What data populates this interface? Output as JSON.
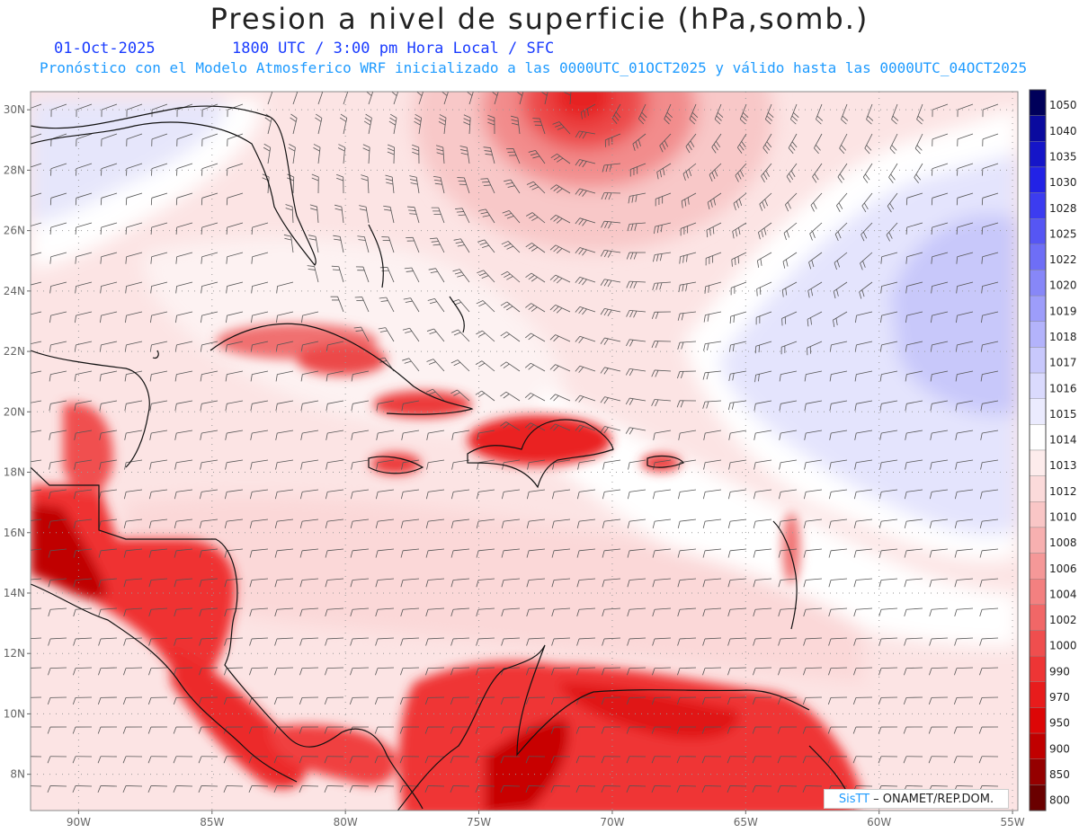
{
  "title": "Presion a nivel de superficie (hPa,somb.)",
  "subtitle": {
    "date": "01-Oct-2025",
    "time": "1800 UTC / 3:00 pm Hora Local / SFC",
    "model": "Pronóstico con el Modelo Atmosferico WRF inicializado a las 0000UTC_01OCT2025 y válido hasta las  0000UTC_04OCT2025"
  },
  "map": {
    "lat_ticks": [
      "30N",
      "28N",
      "26N",
      "24N",
      "22N",
      "20N",
      "18N",
      "16N",
      "14N",
      "12N",
      "10N",
      "8N"
    ],
    "lon_ticks": [
      "90W",
      "85W",
      "80W",
      "75W",
      "70W",
      "65W",
      "60W",
      "55W"
    ],
    "lat_range": [
      6.8,
      30.6
    ],
    "lon_range": [
      -91.8,
      -54.8
    ],
    "grid": true
  },
  "colorbar": {
    "levels": [
      "1050",
      "1040",
      "1035",
      "1030",
      "1028",
      "1025",
      "1022",
      "1020",
      "1019",
      "1018",
      "1017",
      "1016",
      "1015",
      "1014",
      "1013",
      "1012",
      "1010",
      "1008",
      "1006",
      "1004",
      "1002",
      "1000",
      "990",
      "970",
      "950",
      "900",
      "850",
      "800"
    ],
    "colors": [
      "#00005a",
      "#0a0a9e",
      "#1515c8",
      "#2222e6",
      "#3c3cf0",
      "#5656f4",
      "#6e6ef6",
      "#8787f8",
      "#9d9dfa",
      "#b3b3fb",
      "#c8c8fc",
      "#dadafd",
      "#ebebfe",
      "#ffffff",
      "#fdecec",
      "#fbdada",
      "#f9c6c6",
      "#f7b0b0",
      "#f59898",
      "#f38080",
      "#f16767",
      "#ef4e4e",
      "#ee3535",
      "#e81c1c",
      "#dd0606",
      "#c00000",
      "#950000",
      "#6a0000"
    ]
  },
  "credit": {
    "brand": "SisTT",
    "org": "– ONAMET/REP.DOM."
  }
}
